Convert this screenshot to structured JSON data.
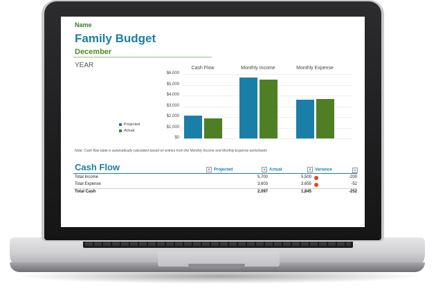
{
  "sheet": {
    "name_label": "Name",
    "title": "Family Budget",
    "month": "December",
    "year_label": "YEAR"
  },
  "chart_data": {
    "type": "bar",
    "panels": [
      "Cash Flow",
      "Monthly Income",
      "Monthly Expense"
    ],
    "y_ticks": [
      "$6,000",
      "$5,000",
      "$4,000",
      "$3,000",
      "$2,000",
      "$1,000",
      "$0"
    ],
    "ylim": [
      0,
      6000
    ],
    "series": [
      {
        "name": "Projected",
        "color": "#1a7fa6",
        "values": [
          2097,
          5700,
          3603
        ]
      },
      {
        "name": "Actual",
        "color": "#4e7f24",
        "values": [
          1845,
          5500,
          3655
        ]
      }
    ],
    "legend_position": "left"
  },
  "note": "Note: Cash flow table is automatically calculated based on entries from the Monthly Income and Monthly Expense worksheets",
  "cash_flow": {
    "title": "Cash Flow",
    "columns": [
      "Projected",
      "Actual",
      "Variance"
    ],
    "rows": [
      {
        "label": "Total Income",
        "projected": "5,700",
        "actual": "5,500",
        "variance": "-200"
      },
      {
        "label": "Total Expense",
        "projected": "3,603",
        "actual": "3,655",
        "variance": "-52"
      },
      {
        "label": "Total Cash",
        "projected": "2,097",
        "actual": "1,845",
        "variance": "-252"
      }
    ]
  }
}
